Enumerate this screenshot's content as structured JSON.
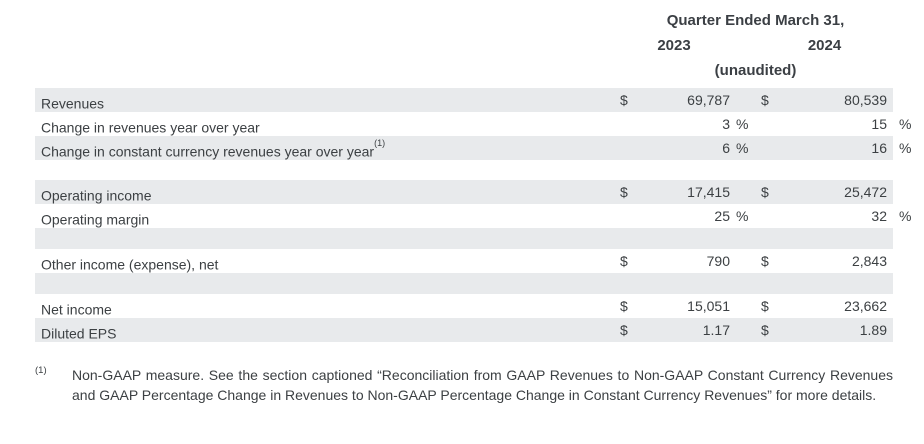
{
  "header": {
    "title": "Quarter Ended March 31,",
    "col_2023": "2023",
    "col_2024": "2024",
    "unaudited": "(unaudited)"
  },
  "table": {
    "rows": [
      {
        "label": "Revenues",
        "d1": "$",
        "v1": "69,787",
        "d2": "$",
        "v2": "80,539",
        "shaded": true
      },
      {
        "label": "Change in revenues year over year",
        "v1": "3",
        "p1": "%",
        "v2": "15",
        "p2": "%",
        "shaded": false
      },
      {
        "label": "Change in constant currency revenues year over year",
        "sup": "(1)",
        "v1": "6",
        "p1": "%",
        "v2": "16",
        "p2": "%",
        "shaded": true
      },
      {
        "spacer": true,
        "shaded": false
      },
      {
        "label": "Operating income",
        "d1": "$",
        "v1": "17,415",
        "d2": "$",
        "v2": "25,472",
        "shaded": true
      },
      {
        "label": "Operating margin",
        "v1": "25",
        "p1": "%",
        "v2": "32",
        "p2": "%",
        "shaded": false
      },
      {
        "spacer": true,
        "shaded": true
      },
      {
        "label": "Other income (expense), net",
        "d1": "$",
        "v1": "790",
        "d2": "$",
        "v2": "2,843",
        "shaded": false
      },
      {
        "spacer": true,
        "shaded": true
      },
      {
        "label": "Net income",
        "d1": "$",
        "v1": "15,051",
        "d2": "$",
        "v2": "23,662",
        "shaded": false
      },
      {
        "label": "Diluted EPS",
        "d1": "$",
        "v1": "1.17",
        "d2": "$",
        "v2": "1.89",
        "shaded": true
      }
    ]
  },
  "footnote": {
    "marker": "(1)",
    "text": "Non-GAAP measure. See the section captioned “Reconciliation from GAAP Revenues to Non-GAAP Constant Currency Revenues and GAAP Percentage Change in Revenues to Non-GAAP Percentage Change in Constant Currency Revenues” for more details."
  },
  "colors": {
    "row_shade": "#e8eaec",
    "text": "#3c4043"
  }
}
